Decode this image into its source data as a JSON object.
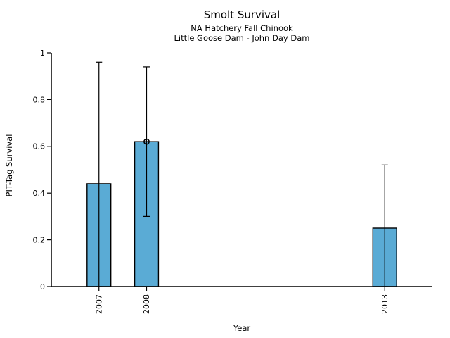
{
  "chart_data": {
    "type": "bar",
    "title": "Smolt Survival",
    "subtitle": [
      "NA Hatchery Fall Chinook",
      "Little Goose Dam - John Day Dam"
    ],
    "xlabel": "Year",
    "ylabel": "PIT-Tag Survival",
    "categories": [
      "2007",
      "2008",
      "2013"
    ],
    "x_values": [
      2007,
      2008,
      2013
    ],
    "values": [
      0.44,
      0.62,
      0.25
    ],
    "error_low": [
      0,
      0.3,
      0
    ],
    "error_high": [
      0.96,
      0.94,
      0.52
    ],
    "point_markers": [
      {
        "x": 2008,
        "y": 0.62,
        "shape": "open-circle"
      }
    ],
    "ylim": [
      0,
      1
    ],
    "yticks": [
      0,
      0.2,
      0.4,
      0.6,
      0.8,
      1
    ],
    "xlim": [
      2006,
      2014
    ],
    "bar_width_years": 0.5,
    "grid": false,
    "legend": false,
    "colors": {
      "bar_fill": "#5AABD5",
      "bar_edge": "#000000",
      "error": "#000000",
      "axis": "#000000",
      "text": "#000000"
    }
  }
}
